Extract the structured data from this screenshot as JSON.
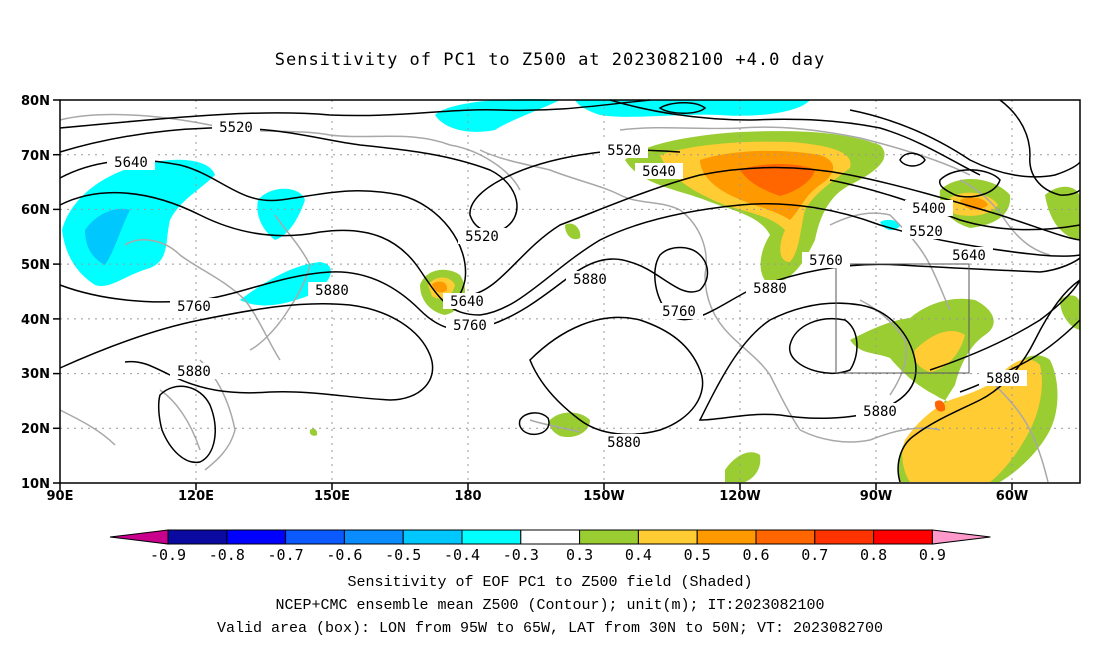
{
  "title": "Sensitivity of PC1 to Z500 at 2023082100 +4.0 day",
  "latitude_labels": [
    "80N",
    "70N",
    "60N",
    "50N",
    "40N",
    "30N",
    "20N",
    "10N"
  ],
  "longitude_labels": [
    "90E",
    "120E",
    "150E",
    "180",
    "150W",
    "120W",
    "90W",
    "60W"
  ],
  "contour_labels": [
    {
      "text": "5520"
    },
    {
      "text": "5520"
    },
    {
      "text": "5520"
    },
    {
      "text": "5520"
    },
    {
      "text": "5640"
    },
    {
      "text": "5640"
    },
    {
      "text": "5640"
    },
    {
      "text": "5640"
    },
    {
      "text": "5760"
    },
    {
      "text": "5760"
    },
    {
      "text": "5760"
    },
    {
      "text": "5760"
    },
    {
      "text": "5880"
    },
    {
      "text": "5880"
    },
    {
      "text": "5880"
    },
    {
      "text": "5880"
    },
    {
      "text": "5880"
    },
    {
      "text": "5880"
    },
    {
      "text": "5880"
    },
    {
      "text": "5400"
    }
  ],
  "colorbar": {
    "labels": [
      "-0.9",
      "-0.8",
      "-0.7",
      "-0.6",
      "-0.5",
      "-0.4",
      "-0.3",
      "0.3",
      "0.4",
      "0.5",
      "0.6",
      "0.7",
      "0.8",
      "0.9"
    ],
    "colors": [
      "#c8008c",
      "#0a0aa0",
      "#0000ff",
      "#0a5aff",
      "#0a8cff",
      "#00c8ff",
      "#00ffff",
      "#ffffff",
      "#9acd32",
      "#ffcc33",
      "#ff9900",
      "#ff6600",
      "#ff3300",
      "#ff0000",
      "#ff99cc"
    ]
  },
  "captions": {
    "line1": "Sensitivity of EOF PC1 to Z500 field (Shaded)",
    "line2": "NCEP+CMC ensemble mean Z500 (Contour); unit(m); IT:2023082100",
    "line3": "Valid area (box): LON from 95W to 65W, LAT from 30N to 50N; VT: 2023082700"
  }
}
